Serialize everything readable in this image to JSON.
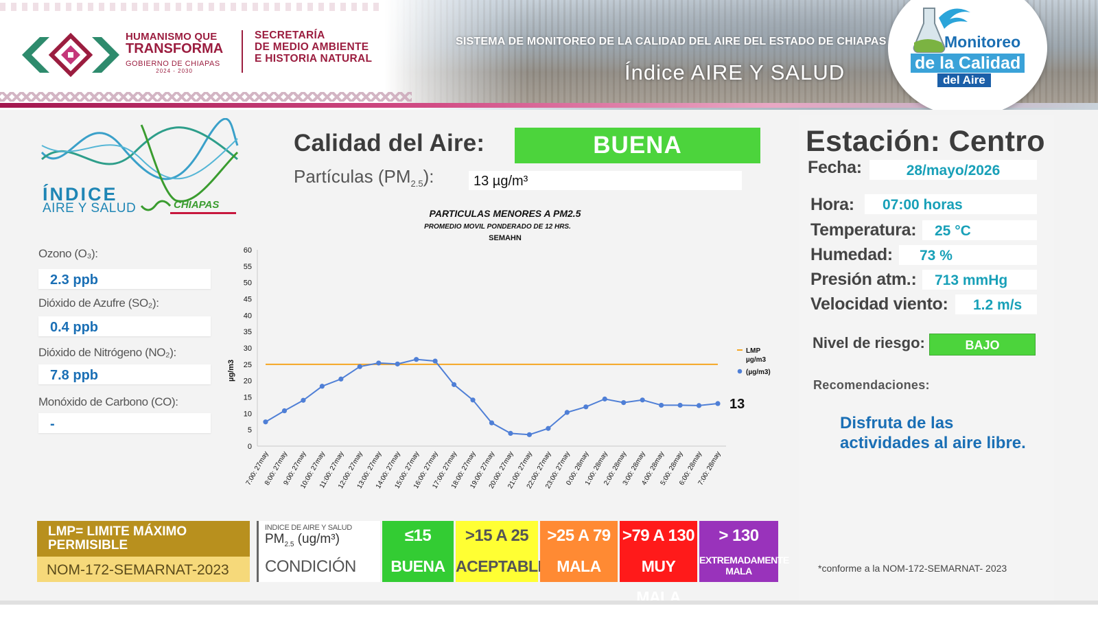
{
  "header": {
    "gov_line1": "HUMANISMO QUE",
    "gov_line2": "TRANSFORMA",
    "gov_line3": "GOBIERNO DE CHIAPAS",
    "gov_line4": "2024 - 2030",
    "secretaria_line1": "SECRETARÍA",
    "secretaria_line2": "DE MEDIO AMBIENTE",
    "secretaria_line3": "E HISTORIA NATURAL",
    "system_title": "SISTEMA DE MONITOREO DE LA CALIDAD DEL AIRE DEL ESTADO DE CHIAPAS",
    "index_title": "Índice AIRE Y SALUD",
    "badge_line1": "Monitoreo",
    "badge_line2": "de la Calidad",
    "badge_line3": "del Aire"
  },
  "index_logo": {
    "line1": "ÍNDICE",
    "line2": "AIRE Y SALUD",
    "line3": "CHIAPAS"
  },
  "pollutants": [
    {
      "label": "Ozono (O₃):",
      "value": "2.3 ppb"
    },
    {
      "label": "Dióxido de Azufre (SO₂):",
      "value": "0.4 ppb"
    },
    {
      "label": "Dióxido de Nitrógeno (NO₂):",
      "value": "7.8 ppb"
    },
    {
      "label": "Monóxido de Carbono (CO):",
      "value": "-"
    }
  ],
  "air_quality": {
    "label": "Calidad del Aire:",
    "value": "BUENA",
    "pm_label_main": "Partículas (PM",
    "pm_label_sub": "2.5",
    "pm_label_end": "):",
    "pm_value": "13 µg/m³"
  },
  "chart_data": {
    "type": "line",
    "title": "PARTICULAS MENORES A PM2.5",
    "subtitle": "PROMEDIO MOVIL PONDERADO DE 12 HRS.",
    "source": "SEMAHN",
    "ylabel": "µg/m3",
    "ylim": [
      0,
      60
    ],
    "yticks": [
      0,
      5,
      10,
      15,
      20,
      25,
      30,
      35,
      40,
      45,
      50,
      55,
      60
    ],
    "categories": [
      "7:00: 27may",
      "8:00: 27may",
      "9:00: 27may",
      "10:00: 27may",
      "11:00: 27may",
      "12:00: 27may",
      "13:00: 27may",
      "14:00: 27may",
      "15:00: 27may",
      "16:00: 27may",
      "17:00: 27may",
      "18:00: 27may",
      "19:00: 27may",
      "20:00: 27may",
      "21:00: 27may",
      "22:00: 27may",
      "23:00: 27may",
      "0:00: 28may",
      "1:00: 28may",
      "2:00: 28may",
      "3:00: 28may",
      "4:00: 28may",
      "5:00: 28may",
      "6:00: 28may",
      "7:00: 28may"
    ],
    "series": [
      {
        "name": "LMP µg/m3",
        "values": [
          25,
          25,
          25,
          25,
          25,
          25,
          25,
          25,
          25,
          25,
          25,
          25,
          25,
          25,
          25,
          25,
          25,
          25,
          25,
          25,
          25,
          25,
          25,
          25,
          25
        ],
        "color": "#f5a623"
      },
      {
        "name": "(µg/m3)",
        "values": [
          7.4,
          10.8,
          14,
          18.3,
          20.5,
          24.3,
          25.4,
          25.1,
          26.5,
          26,
          18.8,
          14.1,
          7.1,
          3.9,
          3.5,
          5.4,
          10.3,
          12,
          14.4,
          13.3,
          14.1,
          12.5,
          12.5,
          12.4,
          13
        ]
      }
    ],
    "data_label": "13",
    "legend_position": "right",
    "grid": false
  },
  "legend_table": {
    "lmp_line1": "LMP= LIMITE MÁXIMO",
    "lmp_line2": "PERMISIBLE",
    "nom": "NOM-172-SEMARNAT-2023",
    "head_a": "INDICE DE AIRE Y SALUD",
    "head_b_main": "PM",
    "head_b_sub": "2.5",
    "head_b_end": " (ug/m³)",
    "condition_label": "CONDICIÓN",
    "levels": [
      {
        "range": "≤15",
        "condition": "BUENA",
        "color": "#33cc33",
        "text_color": "#ffffff"
      },
      {
        "range": ">15 A 25",
        "condition": "ACEPTABLE",
        "color": "#ffff33",
        "text_color": "#555555"
      },
      {
        "range": ">25 A 79",
        "condition": "MALA",
        "color": "#ff8a33",
        "text_color": "#ffffff"
      },
      {
        "range": ">79 A 130",
        "condition": "MUY MALA",
        "color": "#ff1a1a",
        "text_color": "#ffffff"
      },
      {
        "range": "> 130",
        "condition": "EXTREMADAMENTE MALA",
        "color": "#9933bb",
        "text_color": "#ffffff"
      }
    ]
  },
  "station": {
    "title": "Estación: Centro",
    "fields": [
      {
        "label": "Fecha:",
        "value": "28/mayo/2026"
      },
      {
        "label": "Hora:",
        "value": "07:00 horas"
      },
      {
        "label": "Temperatura:",
        "value": "25 °C"
      },
      {
        "label": "Humedad:",
        "value": "73 %"
      },
      {
        "label": "Presión atm.:",
        "value": "713 mmHg"
      },
      {
        "label": "Velocidad viento:",
        "value": "1.2 m/s"
      }
    ],
    "risk_label": "Nivel de riesgo:",
    "risk_value": "BAJO",
    "recommendations_label": "Recomendaciones:",
    "recommendation_line1": "Disfruta de las",
    "recommendation_line2": "actividades al aire libre.",
    "note": "*conforme a la NOM-172-SEMARNAT- 2023"
  }
}
